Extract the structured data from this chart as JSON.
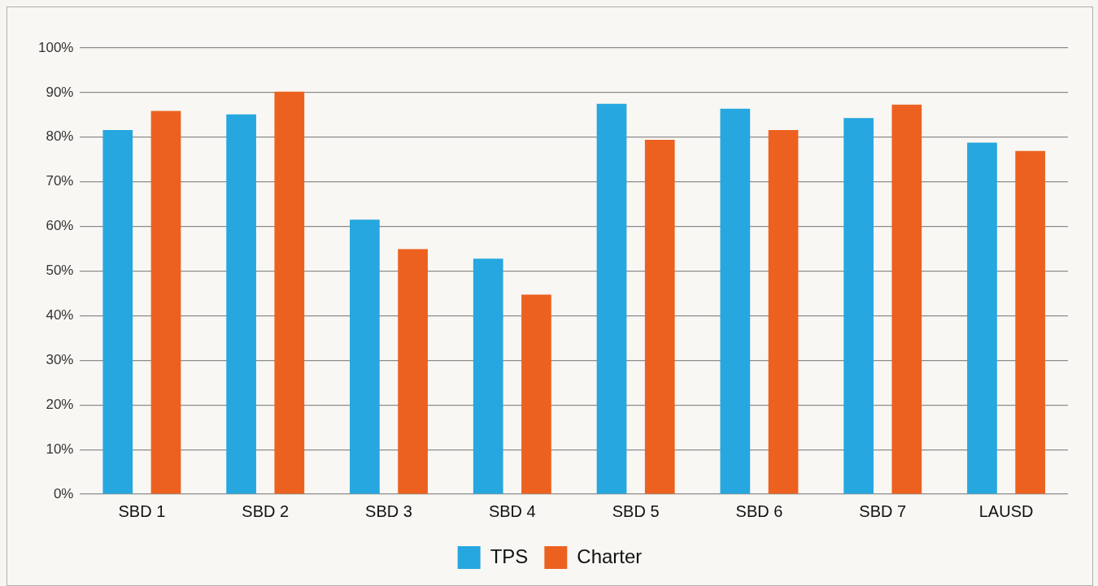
{
  "chart_data": {
    "type": "bar",
    "categories": [
      "SBD 1",
      "SBD 2",
      "SBD 3",
      "SBD 4",
      "SBD 5",
      "SBD 6",
      "SBD 7",
      "LAUSD"
    ],
    "series": [
      {
        "name": "TPS",
        "color": "#26a7df",
        "values": [
          0.816,
          0.851,
          0.615,
          0.528,
          0.875,
          0.864,
          0.843,
          0.788
        ]
      },
      {
        "name": "Charter",
        "color": "#ec6120",
        "values": [
          0.859,
          0.902,
          0.549,
          0.447,
          0.794,
          0.816,
          0.873,
          0.769
        ]
      }
    ],
    "ylim": [
      0,
      1
    ],
    "yticks": [
      {
        "value": 0,
        "label": "0%"
      },
      {
        "value": 0.1,
        "label": "10%"
      },
      {
        "value": 0.2,
        "label": "20%"
      },
      {
        "value": 0.3,
        "label": "30%"
      },
      {
        "value": 0.4,
        "label": "40%"
      },
      {
        "value": 0.5,
        "label": "50%"
      },
      {
        "value": 0.6,
        "label": "60%"
      },
      {
        "value": 0.7,
        "label": "70%"
      },
      {
        "value": 0.8,
        "label": "80%"
      },
      {
        "value": 0.9,
        "label": "90%"
      },
      {
        "value": 1,
        "label": "100%"
      }
    ],
    "grid": "y",
    "legend": "bottom"
  }
}
